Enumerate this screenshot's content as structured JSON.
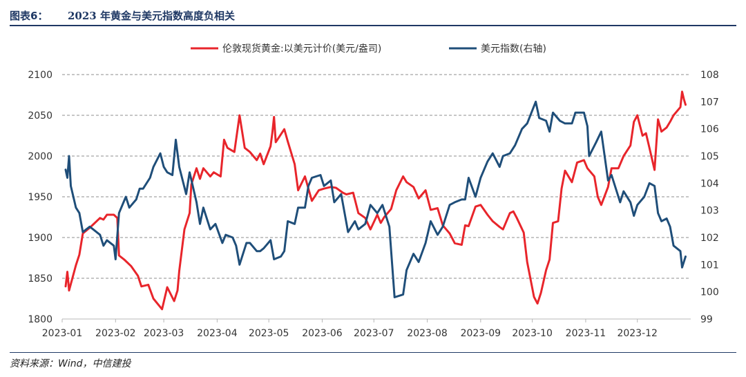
{
  "header": {
    "figure_label": "图表6：",
    "figure_title": "2023 年黄金与美元指数高度负相关"
  },
  "footer": {
    "source": "资料来源：Wind，中信建投"
  },
  "chart_data": {
    "type": "line",
    "title": "",
    "x_ticks": [
      "2023-01",
      "2023-02",
      "2023-03",
      "2023-04",
      "2023-05",
      "2023-06",
      "2023-07",
      "2023-08",
      "2023-09",
      "2023-10",
      "2023-11",
      "2023-12"
    ],
    "y_left": {
      "min": 1800,
      "max": 2100,
      "ticks": [
        1800,
        1850,
        1900,
        1950,
        2000,
        2050,
        2100
      ]
    },
    "y_right": {
      "min": 99,
      "max": 108,
      "ticks": [
        99,
        100,
        101,
        102,
        103,
        104,
        105,
        106,
        107,
        108
      ]
    },
    "grid": "horizontal dashed",
    "legend_position": "top",
    "series": [
      {
        "name": "伦敦现货黄金:以美元计价(美元/盎司)",
        "axis": "left",
        "color": "#e8252b",
        "points": [
          [
            "2023-01-03",
            1840
          ],
          [
            "2023-01-04",
            1858
          ],
          [
            "2023-01-05",
            1835
          ],
          [
            "2023-01-09",
            1866
          ],
          [
            "2023-01-11",
            1879
          ],
          [
            "2023-01-13",
            1905
          ],
          [
            "2023-01-17",
            1912
          ],
          [
            "2023-01-19",
            1916
          ],
          [
            "2023-01-23",
            1924
          ],
          [
            "2023-01-25",
            1922
          ],
          [
            "2023-01-27",
            1928
          ],
          [
            "2023-01-31",
            1928
          ],
          [
            "2023-02-02",
            1924
          ],
          [
            "2023-02-03",
            1878
          ],
          [
            "2023-02-06",
            1873
          ],
          [
            "2023-02-10",
            1865
          ],
          [
            "2023-02-14",
            1853
          ],
          [
            "2023-02-16",
            1840
          ],
          [
            "2023-02-20",
            1842
          ],
          [
            "2023-02-23",
            1825
          ],
          [
            "2023-02-28",
            1812
          ],
          [
            "2023-03-03",
            1839
          ],
          [
            "2023-03-07",
            1822
          ],
          [
            "2023-03-09",
            1835
          ],
          [
            "2023-03-10",
            1859
          ],
          [
            "2023-03-13",
            1910
          ],
          [
            "2023-03-16",
            1930
          ],
          [
            "2023-03-17",
            1965
          ],
          [
            "2023-03-20",
            1985
          ],
          [
            "2023-03-22",
            1972
          ],
          [
            "2023-03-24",
            1985
          ],
          [
            "2023-03-28",
            1975
          ],
          [
            "2023-03-30",
            1980
          ],
          [
            "2023-04-03",
            1975
          ],
          [
            "2023-04-05",
            2020
          ],
          [
            "2023-04-07",
            2010
          ],
          [
            "2023-04-11",
            2005
          ],
          [
            "2023-04-13",
            2035
          ],
          [
            "2023-04-14",
            2050
          ],
          [
            "2023-04-17",
            2010
          ],
          [
            "2023-04-20",
            2005
          ],
          [
            "2023-04-24",
            1995
          ],
          [
            "2023-04-26",
            2003
          ],
          [
            "2023-04-28",
            1990
          ],
          [
            "2023-05-02",
            2012
          ],
          [
            "2023-05-03",
            2028
          ],
          [
            "2023-05-04",
            2048
          ],
          [
            "2023-05-05",
            2017
          ],
          [
            "2023-05-10",
            2033
          ],
          [
            "2023-05-12",
            2018
          ],
          [
            "2023-05-16",
            1990
          ],
          [
            "2023-05-18",
            1958
          ],
          [
            "2023-05-22",
            1975
          ],
          [
            "2023-05-24",
            1960
          ],
          [
            "2023-05-26",
            1945
          ],
          [
            "2023-05-30",
            1958
          ],
          [
            "2023-06-02",
            1960
          ],
          [
            "2023-06-06",
            1962
          ],
          [
            "2023-06-09",
            1961
          ],
          [
            "2023-06-13",
            1955
          ],
          [
            "2023-06-15",
            1953
          ],
          [
            "2023-06-19",
            1955
          ],
          [
            "2023-06-22",
            1930
          ],
          [
            "2023-06-26",
            1924
          ],
          [
            "2023-06-29",
            1910
          ],
          [
            "2023-07-03",
            1928
          ],
          [
            "2023-07-05",
            1918
          ],
          [
            "2023-07-07",
            1925
          ],
          [
            "2023-07-11",
            1935
          ],
          [
            "2023-07-14",
            1958
          ],
          [
            "2023-07-18",
            1975
          ],
          [
            "2023-07-20",
            1968
          ],
          [
            "2023-07-24",
            1962
          ],
          [
            "2023-07-27",
            1948
          ],
          [
            "2023-07-31",
            1958
          ],
          [
            "2023-08-03",
            1934
          ],
          [
            "2023-08-07",
            1936
          ],
          [
            "2023-08-10",
            1915
          ],
          [
            "2023-08-14",
            1905
          ],
          [
            "2023-08-17",
            1893
          ],
          [
            "2023-08-21",
            1891
          ],
          [
            "2023-08-23",
            1915
          ],
          [
            "2023-08-25",
            1914
          ],
          [
            "2023-08-29",
            1938
          ],
          [
            "2023-09-01",
            1940
          ],
          [
            "2023-09-05",
            1928
          ],
          [
            "2023-09-08",
            1920
          ],
          [
            "2023-09-12",
            1913
          ],
          [
            "2023-09-14",
            1910
          ],
          [
            "2023-09-18",
            1930
          ],
          [
            "2023-09-20",
            1932
          ],
          [
            "2023-09-22",
            1924
          ],
          [
            "2023-09-26",
            1906
          ],
          [
            "2023-09-28",
            1870
          ],
          [
            "2023-10-02",
            1827
          ],
          [
            "2023-10-04",
            1819
          ],
          [
            "2023-10-06",
            1832
          ],
          [
            "2023-10-09",
            1860
          ],
          [
            "2023-10-11",
            1873
          ],
          [
            "2023-10-13",
            1918
          ],
          [
            "2023-10-16",
            1920
          ],
          [
            "2023-10-18",
            1960
          ],
          [
            "2023-10-20",
            1982
          ],
          [
            "2023-10-24",
            1968
          ],
          [
            "2023-10-27",
            1992
          ],
          [
            "2023-10-31",
            1995
          ],
          [
            "2023-11-02",
            1985
          ],
          [
            "2023-11-06",
            1975
          ],
          [
            "2023-11-08",
            1950
          ],
          [
            "2023-11-10",
            1940
          ],
          [
            "2023-11-14",
            1962
          ],
          [
            "2023-11-16",
            1985
          ],
          [
            "2023-11-20",
            1985
          ],
          [
            "2023-11-23",
            2000
          ],
          [
            "2023-11-27",
            2013
          ],
          [
            "2023-11-29",
            2042
          ],
          [
            "2023-12-01",
            2050
          ],
          [
            "2023-12-04",
            2025
          ],
          [
            "2023-12-06",
            2028
          ],
          [
            "2023-12-08",
            2010
          ],
          [
            "2023-12-11",
            1983
          ],
          [
            "2023-12-13",
            2045
          ],
          [
            "2023-12-15",
            2030
          ],
          [
            "2023-12-18",
            2035
          ],
          [
            "2023-12-20",
            2042
          ],
          [
            "2023-12-22",
            2050
          ],
          [
            "2023-12-26",
            2060
          ],
          [
            "2023-12-27",
            2079
          ],
          [
            "2023-12-28",
            2070
          ],
          [
            "2023-12-29",
            2063
          ]
        ]
      },
      {
        "name": "美元指数(右轴)",
        "axis": "right",
        "color": "#1f4e79",
        "points": [
          [
            "2023-01-03",
            104.5
          ],
          [
            "2023-01-04",
            104.2
          ],
          [
            "2023-01-05",
            105.0
          ],
          [
            "2023-01-06",
            103.9
          ],
          [
            "2023-01-09",
            103.1
          ],
          [
            "2023-01-11",
            102.9
          ],
          [
            "2023-01-13",
            102.2
          ],
          [
            "2023-01-17",
            102.4
          ],
          [
            "2023-01-19",
            102.3
          ],
          [
            "2023-01-23",
            102.1
          ],
          [
            "2023-01-25",
            101.7
          ],
          [
            "2023-01-27",
            101.9
          ],
          [
            "2023-01-31",
            101.7
          ],
          [
            "2023-02-01",
            101.2
          ],
          [
            "2023-02-03",
            102.9
          ],
          [
            "2023-02-07",
            103.5
          ],
          [
            "2023-02-09",
            103.1
          ],
          [
            "2023-02-13",
            103.4
          ],
          [
            "2023-02-15",
            103.8
          ],
          [
            "2023-02-17",
            103.8
          ],
          [
            "2023-02-21",
            104.2
          ],
          [
            "2023-02-23",
            104.6
          ],
          [
            "2023-02-27",
            105.1
          ],
          [
            "2023-03-01",
            104.6
          ],
          [
            "2023-03-03",
            104.4
          ],
          [
            "2023-03-06",
            104.3
          ],
          [
            "2023-03-08",
            105.6
          ],
          [
            "2023-03-10",
            104.6
          ],
          [
            "2023-03-14",
            103.6
          ],
          [
            "2023-03-16",
            104.4
          ],
          [
            "2023-03-20",
            103.3
          ],
          [
            "2023-03-22",
            102.5
          ],
          [
            "2023-03-24",
            103.1
          ],
          [
            "2023-03-28",
            102.3
          ],
          [
            "2023-03-31",
            102.5
          ],
          [
            "2023-04-04",
            101.8
          ],
          [
            "2023-04-06",
            102.1
          ],
          [
            "2023-04-10",
            102.0
          ],
          [
            "2023-04-12",
            101.7
          ],
          [
            "2023-04-14",
            101.0
          ],
          [
            "2023-04-18",
            101.8
          ],
          [
            "2023-04-20",
            101.8
          ],
          [
            "2023-04-24",
            101.5
          ],
          [
            "2023-04-26",
            101.5
          ],
          [
            "2023-04-28",
            101.6
          ],
          [
            "2023-05-02",
            101.9
          ],
          [
            "2023-05-04",
            101.2
          ],
          [
            "2023-05-08",
            101.3
          ],
          [
            "2023-05-10",
            101.5
          ],
          [
            "2023-05-12",
            102.6
          ],
          [
            "2023-05-16",
            102.5
          ],
          [
            "2023-05-18",
            103.1
          ],
          [
            "2023-05-22",
            103.1
          ],
          [
            "2023-05-24",
            103.9
          ],
          [
            "2023-05-26",
            104.2
          ],
          [
            "2023-05-31",
            104.3
          ],
          [
            "2023-06-02",
            103.9
          ],
          [
            "2023-06-06",
            104.1
          ],
          [
            "2023-06-08",
            103.3
          ],
          [
            "2023-06-12",
            103.6
          ],
          [
            "2023-06-14",
            102.9
          ],
          [
            "2023-06-16",
            102.2
          ],
          [
            "2023-06-20",
            102.6
          ],
          [
            "2023-06-22",
            102.3
          ],
          [
            "2023-06-26",
            102.5
          ],
          [
            "2023-06-29",
            103.2
          ],
          [
            "2023-07-03",
            102.9
          ],
          [
            "2023-07-06",
            103.2
          ],
          [
            "2023-07-10",
            102.4
          ],
          [
            "2023-07-13",
            99.8
          ],
          [
            "2023-07-18",
            99.9
          ],
          [
            "2023-07-20",
            100.8
          ],
          [
            "2023-07-24",
            101.4
          ],
          [
            "2023-07-27",
            101.1
          ],
          [
            "2023-07-31",
            101.8
          ],
          [
            "2023-08-03",
            102.6
          ],
          [
            "2023-08-07",
            102.1
          ],
          [
            "2023-08-10",
            102.4
          ],
          [
            "2023-08-14",
            103.2
          ],
          [
            "2023-08-17",
            103.3
          ],
          [
            "2023-08-21",
            103.4
          ],
          [
            "2023-08-23",
            103.4
          ],
          [
            "2023-08-25",
            104.2
          ],
          [
            "2023-08-29",
            103.5
          ],
          [
            "2023-09-01",
            104.2
          ],
          [
            "2023-09-05",
            104.8
          ],
          [
            "2023-09-08",
            105.1
          ],
          [
            "2023-09-12",
            104.6
          ],
          [
            "2023-09-14",
            105.0
          ],
          [
            "2023-09-18",
            105.1
          ],
          [
            "2023-09-21",
            105.4
          ],
          [
            "2023-09-25",
            106.0
          ],
          [
            "2023-09-28",
            106.2
          ],
          [
            "2023-10-03",
            107.0
          ],
          [
            "2023-10-05",
            106.4
          ],
          [
            "2023-10-09",
            106.3
          ],
          [
            "2023-10-11",
            105.9
          ],
          [
            "2023-10-13",
            106.6
          ],
          [
            "2023-10-17",
            106.3
          ],
          [
            "2023-10-20",
            106.2
          ],
          [
            "2023-10-24",
            106.2
          ],
          [
            "2023-10-26",
            106.6
          ],
          [
            "2023-10-31",
            106.6
          ],
          [
            "2023-11-02",
            106.1
          ],
          [
            "2023-11-03",
            105.0
          ],
          [
            "2023-11-07",
            105.5
          ],
          [
            "2023-11-10",
            105.9
          ],
          [
            "2023-11-14",
            104.1
          ],
          [
            "2023-11-16",
            104.3
          ],
          [
            "2023-11-21",
            103.3
          ],
          [
            "2023-11-23",
            103.7
          ],
          [
            "2023-11-27",
            103.3
          ],
          [
            "2023-11-29",
            102.8
          ],
          [
            "2023-12-01",
            103.2
          ],
          [
            "2023-12-05",
            103.5
          ],
          [
            "2023-12-08",
            104.0
          ],
          [
            "2023-12-11",
            103.9
          ],
          [
            "2023-12-13",
            102.9
          ],
          [
            "2023-12-15",
            102.6
          ],
          [
            "2023-12-18",
            102.7
          ],
          [
            "2023-12-20",
            102.4
          ],
          [
            "2023-12-22",
            101.7
          ],
          [
            "2023-12-26",
            101.5
          ],
          [
            "2023-12-27",
            100.9
          ],
          [
            "2023-12-29",
            101.3
          ]
        ]
      }
    ]
  }
}
